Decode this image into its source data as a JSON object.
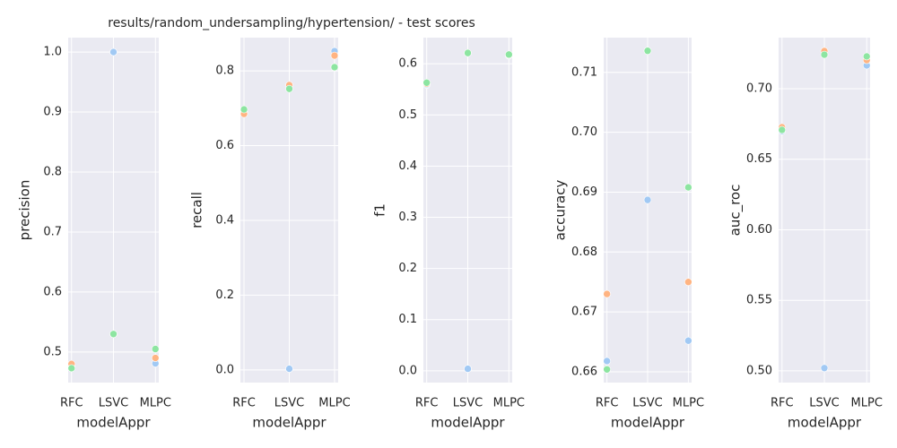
{
  "chart_data": [
    {
      "type": "strip",
      "title": "results/random_undersampling/hypertension/ - test scores",
      "xlabel": "modelAppr",
      "ylabel": "precision",
      "categories": [
        "RFC",
        "LSVC",
        "MLPC"
      ],
      "grid": true,
      "ylim": [
        0.449,
        1.024
      ],
      "yticks": [
        0.5,
        0.6,
        0.7,
        0.8,
        0.9,
        {
          "value": 1,
          "label": "1.0"
        }
      ],
      "series": [
        {
          "color": "#a1c9f4",
          "values": [
            0.475,
            1.0,
            0.481
          ]
        },
        {
          "color": "#ffb482",
          "values": [
            0.48,
            0.53,
            0.49
          ]
        },
        {
          "color": "#8de5a1",
          "values": [
            0.473,
            0.53,
            0.505
          ]
        }
      ]
    },
    {
      "type": "strip",
      "xlabel": "modelAppr",
      "ylabel": "recall",
      "categories": [
        "RFC",
        "LSVC",
        "MLPC"
      ],
      "grid": true,
      "ylim": [
        -0.034,
        0.889
      ],
      "yticks": [
        {
          "value": 0,
          "label": "0.0"
        },
        0.2,
        0.4,
        0.6,
        0.8
      ],
      "series": [
        {
          "color": "#a1c9f4",
          "values": [
            0.69,
            0.003,
            0.853
          ]
        },
        {
          "color": "#ffb482",
          "values": [
            0.685,
            0.762,
            0.841
          ]
        },
        {
          "color": "#8de5a1",
          "values": [
            0.697,
            0.752,
            0.81
          ]
        }
      ]
    },
    {
      "type": "strip",
      "xlabel": "modelAppr",
      "ylabel": "f1",
      "categories": [
        "RFC",
        "LSVC",
        "MLPC"
      ],
      "grid": true,
      "ylim": [
        -0.023,
        0.651
      ],
      "yticks": [
        {
          "value": 0,
          "label": "0.0"
        },
        0.1,
        0.2,
        0.3,
        0.4,
        0.5,
        0.6
      ],
      "series": [
        {
          "color": "#a1c9f4",
          "values": [
            0.559,
            0.004,
            0.616
          ]
        },
        {
          "color": "#ffb482",
          "values": [
            0.561,
            0.621,
            0.617
          ]
        },
        {
          "color": "#8de5a1",
          "values": [
            0.563,
            0.621,
            0.618
          ]
        }
      ]
    },
    {
      "type": "strip",
      "xlabel": "modelAppr",
      "ylabel": "accuracy",
      "categories": [
        "RFC",
        "LSVC",
        "MLPC"
      ],
      "grid": true,
      "ylim": [
        0.6582,
        0.7158
      ],
      "yticks": [
        0.66,
        0.67,
        0.68,
        0.69,
        {
          "value": 0.7,
          "label": "0.70"
        },
        0.71
      ],
      "series": [
        {
          "color": "#a1c9f4",
          "values": [
            0.6618,
            0.6887,
            0.6652
          ]
        },
        {
          "color": "#ffb482",
          "values": [
            0.673,
            0.7136,
            0.675
          ]
        },
        {
          "color": "#8de5a1",
          "values": [
            0.6604,
            0.7136,
            0.6908
          ]
        }
      ]
    },
    {
      "type": "strip",
      "xlabel": "modelAppr",
      "ylabel": "auc_roc",
      "categories": [
        "RFC",
        "LSVC",
        "MLPC"
      ],
      "grid": true,
      "ylim": [
        0.4917,
        0.7362
      ],
      "yticks": [
        {
          "value": 0.5,
          "label": "0.50"
        },
        0.55,
        {
          "value": 0.6,
          "label": "0.60"
        },
        0.65,
        {
          "value": 0.7,
          "label": "0.70"
        }
      ],
      "series": [
        {
          "color": "#a1c9f4",
          "values": [
            0.67,
            0.502,
            0.7165
          ]
        },
        {
          "color": "#ffb482",
          "values": [
            0.6727,
            0.7267,
            0.7203
          ]
        },
        {
          "color": "#8de5a1",
          "values": [
            0.6708,
            0.7241,
            0.7229
          ]
        }
      ]
    }
  ]
}
